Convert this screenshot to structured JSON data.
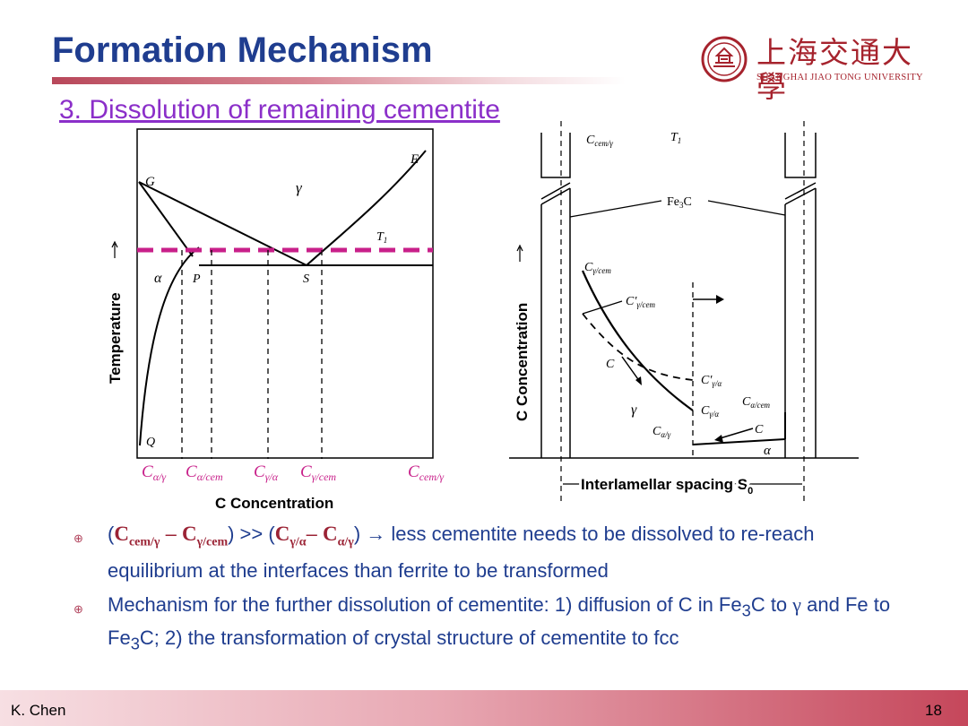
{
  "slide": {
    "title": "Formation Mechanism",
    "subtitle": "3. Dissolution of remaining cementite",
    "logo_cn": "上海交通大學",
    "logo_en": "SHANGHAI JIAO TONG UNIVERSITY",
    "author": "K. Chen",
    "page_number": "18"
  },
  "left_diagram": {
    "points": {
      "G": "G",
      "E": "E",
      "gamma": "γ",
      "T1": "T",
      "T1_sub": "1",
      "alpha": "α",
      "P": "P",
      "S": "S",
      "Q": "Q"
    },
    "y_axis_label": "Temperature",
    "x_axis_label": "C Concentration",
    "x_labels": [
      {
        "main": "C",
        "sub": "α/γ"
      },
      {
        "main": "C",
        "sub": "α/cem"
      },
      {
        "main": "C",
        "sub": "γ/α"
      },
      {
        "main": "C",
        "sub": "γ/cem"
      },
      {
        "main": "C",
        "sub": "cem/γ"
      }
    ]
  },
  "right_diagram": {
    "y_axis_label": "C Concentration",
    "x_axis_label": "Interlamellar spacing S",
    "x_axis_sub": "0",
    "labels": {
      "c_cem_gamma": "C",
      "c_cem_gamma_sub": "cem/γ",
      "t1": "T",
      "t1_sub": "1",
      "fe3c": "Fe",
      "fe3c_sub": "3",
      "fe3c_tail": "C",
      "c_gamma_cem": "C",
      "c_gamma_cem_sub": "γ/cem",
      "c_prime_gamma_cem": "C′",
      "c_prime_gamma_cem_sub": "γ/cem",
      "c_arrow": "C",
      "c_prime_gamma_alpha": "C′",
      "c_prime_gamma_alpha_sub": "γ/α",
      "c_alpha_cem": "C",
      "c_alpha_cem_sub": "α/cem",
      "gamma": "γ",
      "c_gamma_alpha": "C",
      "c_gamma_alpha_sub": "γ/α",
      "c_alpha_gamma": "C",
      "c_alpha_gamma_sub": "α/γ",
      "c_arrow2": "C",
      "alpha": "α"
    }
  },
  "bullets": {
    "b1": {
      "open1": "(",
      "t1": "C",
      "t1_sub": "cem/γ",
      "minus1": " – ",
      "t2": "C",
      "t2_sub": "γ/cem",
      "mid": ") >> (",
      "t3": "C",
      "t3_sub": "γ/α",
      "minus2": "– ",
      "t4": "C",
      "t4_sub": "α/γ",
      "close": ")",
      "arrow": " → ",
      "rest": "less cementite needs to be dissolved to re-reach equilibrium at the interfaces than ferrite to be transformed"
    },
    "b2": {
      "part1": "Mechanism for the further dissolution of cementite: 1) diffusion of C in Fe",
      "sub1": "3",
      "part2": "C to ",
      "gamma": "γ",
      "part3": " and Fe to Fe",
      "sub2": "3",
      "part4": "C; 2) the transformation of crystal structure of cementite to fcc"
    }
  },
  "colors": {
    "title": "#1f3d8f",
    "subtitle": "#8b2fc9",
    "accent_red": "#9b2335",
    "isotherm": "#c8208a",
    "logo": "#a6232d"
  }
}
